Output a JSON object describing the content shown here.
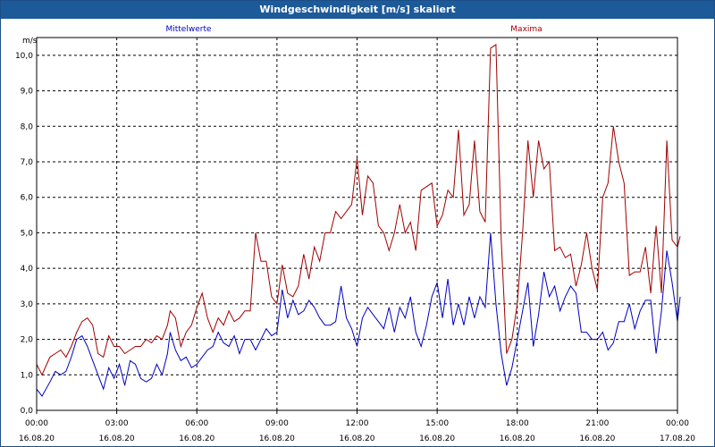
{
  "window": {
    "title": "Windgeschwindigkeit [m/s] skaliert"
  },
  "chart_data": {
    "type": "line",
    "title": "Windgeschwindigkeit [m/s] skaliert",
    "ylabel": "m/s",
    "ylim": [
      0,
      10.5
    ],
    "xlim": [
      0,
      24
    ],
    "y_ticks": [
      "0,0",
      "1,0",
      "2,0",
      "3,0",
      "4,0",
      "5,0",
      "6,0",
      "7,0",
      "8,0",
      "9,0",
      "10,0"
    ],
    "x_ticks": [
      {
        "time": "00:00",
        "date": "16.08.20"
      },
      {
        "time": "03:00",
        "date": "16.08.20"
      },
      {
        "time": "06:00",
        "date": "16.08.20"
      },
      {
        "time": "09:00",
        "date": "16.08.20"
      },
      {
        "time": "12:00",
        "date": "16.08.20"
      },
      {
        "time": "15:00",
        "date": "16.08.20"
      },
      {
        "time": "18:00",
        "date": "16.08.20"
      },
      {
        "time": "21:00",
        "date": "16.08.20"
      },
      {
        "time": "00:00",
        "date": "17.08.20"
      }
    ],
    "grid": true,
    "series": [
      {
        "name": "Mittelwerte",
        "color": "#0000c0",
        "points": [
          [
            0.0,
            0.6
          ],
          [
            0.2,
            0.4
          ],
          [
            0.5,
            0.8
          ],
          [
            0.7,
            1.1
          ],
          [
            0.9,
            1.0
          ],
          [
            1.1,
            1.1
          ],
          [
            1.3,
            1.5
          ],
          [
            1.5,
            2.0
          ],
          [
            1.7,
            2.1
          ],
          [
            1.9,
            1.8
          ],
          [
            2.1,
            1.4
          ],
          [
            2.3,
            1.0
          ],
          [
            2.5,
            0.6
          ],
          [
            2.7,
            1.2
          ],
          [
            2.9,
            0.9
          ],
          [
            3.1,
            1.3
          ],
          [
            3.3,
            0.7
          ],
          [
            3.5,
            1.4
          ],
          [
            3.7,
            1.3
          ],
          [
            3.9,
            0.9
          ],
          [
            4.1,
            0.8
          ],
          [
            4.3,
            0.9
          ],
          [
            4.5,
            1.3
          ],
          [
            4.7,
            1.0
          ],
          [
            4.9,
            1.6
          ],
          [
            5.0,
            2.2
          ],
          [
            5.2,
            1.7
          ],
          [
            5.4,
            1.4
          ],
          [
            5.6,
            1.5
          ],
          [
            5.8,
            1.2
          ],
          [
            6.0,
            1.3
          ],
          [
            6.2,
            1.5
          ],
          [
            6.4,
            1.7
          ],
          [
            6.6,
            1.8
          ],
          [
            6.8,
            2.2
          ],
          [
            7.0,
            1.9
          ],
          [
            7.2,
            1.8
          ],
          [
            7.4,
            2.1
          ],
          [
            7.6,
            1.6
          ],
          [
            7.8,
            2.0
          ],
          [
            8.0,
            2.0
          ],
          [
            8.2,
            1.7
          ],
          [
            8.4,
            2.0
          ],
          [
            8.6,
            2.3
          ],
          [
            8.8,
            2.1
          ],
          [
            9.0,
            2.2
          ],
          [
            9.2,
            3.4
          ],
          [
            9.4,
            2.6
          ],
          [
            9.6,
            3.1
          ],
          [
            9.8,
            2.7
          ],
          [
            10.0,
            2.8
          ],
          [
            10.2,
            3.1
          ],
          [
            10.4,
            2.9
          ],
          [
            10.6,
            2.6
          ],
          [
            10.8,
            2.4
          ],
          [
            11.0,
            2.4
          ],
          [
            11.2,
            2.5
          ],
          [
            11.4,
            3.5
          ],
          [
            11.6,
            2.6
          ],
          [
            11.8,
            2.3
          ],
          [
            12.0,
            1.8
          ],
          [
            12.2,
            2.6
          ],
          [
            12.4,
            2.9
          ],
          [
            12.6,
            2.7
          ],
          [
            12.8,
            2.5
          ],
          [
            13.0,
            2.3
          ],
          [
            13.2,
            2.9
          ],
          [
            13.4,
            2.2
          ],
          [
            13.6,
            2.9
          ],
          [
            13.8,
            2.6
          ],
          [
            14.0,
            3.2
          ],
          [
            14.2,
            2.2
          ],
          [
            14.4,
            1.8
          ],
          [
            14.6,
            2.4
          ],
          [
            14.8,
            3.2
          ],
          [
            15.0,
            3.6
          ],
          [
            15.2,
            2.6
          ],
          [
            15.4,
            3.7
          ],
          [
            15.6,
            2.4
          ],
          [
            15.8,
            3.0
          ],
          [
            16.0,
            2.4
          ],
          [
            16.2,
            3.2
          ],
          [
            16.4,
            2.6
          ],
          [
            16.6,
            3.2
          ],
          [
            16.8,
            2.9
          ],
          [
            17.0,
            5.0
          ],
          [
            17.2,
            3.0
          ],
          [
            17.4,
            1.6
          ],
          [
            17.6,
            0.7
          ],
          [
            17.8,
            1.2
          ],
          [
            18.0,
            2.0
          ],
          [
            18.2,
            2.8
          ],
          [
            18.4,
            3.6
          ],
          [
            18.6,
            1.8
          ],
          [
            18.8,
            2.7
          ],
          [
            19.0,
            3.9
          ],
          [
            19.2,
            3.2
          ],
          [
            19.4,
            3.5
          ],
          [
            19.6,
            2.8
          ],
          [
            19.8,
            3.2
          ],
          [
            20.0,
            3.5
          ],
          [
            20.2,
            3.3
          ],
          [
            20.4,
            2.2
          ],
          [
            20.6,
            2.2
          ],
          [
            20.8,
            2.0
          ],
          [
            21.0,
            2.0
          ],
          [
            21.2,
            2.2
          ],
          [
            21.4,
            1.7
          ],
          [
            21.6,
            1.9
          ],
          [
            21.8,
            2.5
          ],
          [
            22.0,
            2.5
          ],
          [
            22.2,
            3.0
          ],
          [
            22.4,
            2.3
          ],
          [
            22.6,
            2.8
          ],
          [
            22.8,
            3.1
          ],
          [
            23.0,
            3.1
          ],
          [
            23.2,
            1.6
          ],
          [
            23.4,
            2.8
          ],
          [
            23.6,
            4.5
          ],
          [
            23.8,
            3.6
          ],
          [
            24.0,
            2.5
          ],
          [
            24.1,
            3.2
          ]
        ]
      },
      {
        "name": "Maxima",
        "color": "#a00000",
        "points": [
          [
            0.0,
            1.3
          ],
          [
            0.2,
            1.0
          ],
          [
            0.5,
            1.5
          ],
          [
            0.7,
            1.6
          ],
          [
            0.9,
            1.7
          ],
          [
            1.1,
            1.5
          ],
          [
            1.3,
            1.8
          ],
          [
            1.5,
            2.2
          ],
          [
            1.7,
            2.5
          ],
          [
            1.9,
            2.6
          ],
          [
            2.1,
            2.4
          ],
          [
            2.3,
            1.6
          ],
          [
            2.5,
            1.5
          ],
          [
            2.7,
            2.1
          ],
          [
            2.9,
            1.8
          ],
          [
            3.1,
            1.8
          ],
          [
            3.3,
            1.6
          ],
          [
            3.5,
            1.7
          ],
          [
            3.7,
            1.8
          ],
          [
            3.9,
            1.8
          ],
          [
            4.1,
            2.0
          ],
          [
            4.3,
            1.9
          ],
          [
            4.5,
            2.1
          ],
          [
            4.7,
            2.0
          ],
          [
            4.9,
            2.4
          ],
          [
            5.0,
            2.8
          ],
          [
            5.2,
            2.6
          ],
          [
            5.4,
            1.8
          ],
          [
            5.6,
            2.2
          ],
          [
            5.8,
            2.4
          ],
          [
            6.0,
            2.9
          ],
          [
            6.2,
            3.3
          ],
          [
            6.4,
            2.6
          ],
          [
            6.6,
            2.2
          ],
          [
            6.8,
            2.6
          ],
          [
            7.0,
            2.4
          ],
          [
            7.2,
            2.8
          ],
          [
            7.4,
            2.5
          ],
          [
            7.6,
            2.6
          ],
          [
            7.8,
            2.8
          ],
          [
            8.0,
            2.8
          ],
          [
            8.2,
            5.0
          ],
          [
            8.4,
            4.2
          ],
          [
            8.6,
            4.2
          ],
          [
            8.8,
            3.2
          ],
          [
            9.0,
            3.0
          ],
          [
            9.2,
            4.1
          ],
          [
            9.4,
            3.3
          ],
          [
            9.6,
            3.2
          ],
          [
            9.8,
            3.5
          ],
          [
            10.0,
            4.4
          ],
          [
            10.2,
            3.7
          ],
          [
            10.4,
            4.6
          ],
          [
            10.6,
            4.2
          ],
          [
            10.8,
            5.0
          ],
          [
            11.0,
            5.0
          ],
          [
            11.2,
            5.6
          ],
          [
            11.4,
            5.4
          ],
          [
            11.6,
            5.6
          ],
          [
            11.8,
            5.8
          ],
          [
            12.0,
            7.1
          ],
          [
            12.2,
            5.5
          ],
          [
            12.4,
            6.6
          ],
          [
            12.6,
            6.4
          ],
          [
            12.8,
            5.2
          ],
          [
            13.0,
            5.0
          ],
          [
            13.2,
            4.5
          ],
          [
            13.4,
            5.0
          ],
          [
            13.6,
            5.8
          ],
          [
            13.8,
            5.0
          ],
          [
            14.0,
            5.3
          ],
          [
            14.2,
            4.5
          ],
          [
            14.4,
            6.2
          ],
          [
            14.6,
            6.3
          ],
          [
            14.8,
            6.4
          ],
          [
            15.0,
            5.2
          ],
          [
            15.2,
            5.5
          ],
          [
            15.4,
            6.2
          ],
          [
            15.6,
            6.0
          ],
          [
            15.8,
            7.9
          ],
          [
            16.0,
            5.5
          ],
          [
            16.2,
            5.8
          ],
          [
            16.4,
            7.6
          ],
          [
            16.6,
            5.6
          ],
          [
            16.8,
            5.3
          ],
          [
            17.0,
            10.2
          ],
          [
            17.2,
            10.3
          ],
          [
            17.4,
            4.8
          ],
          [
            17.6,
            1.6
          ],
          [
            17.8,
            2.0
          ],
          [
            18.0,
            3.0
          ],
          [
            18.2,
            5.0
          ],
          [
            18.4,
            7.6
          ],
          [
            18.6,
            6.0
          ],
          [
            18.8,
            7.6
          ],
          [
            19.0,
            6.8
          ],
          [
            19.2,
            7.0
          ],
          [
            19.4,
            4.5
          ],
          [
            19.6,
            4.6
          ],
          [
            19.8,
            4.3
          ],
          [
            20.0,
            4.4
          ],
          [
            20.2,
            3.5
          ],
          [
            20.4,
            4.1
          ],
          [
            20.6,
            5.0
          ],
          [
            20.8,
            4.0
          ],
          [
            21.0,
            3.4
          ],
          [
            21.2,
            6.0
          ],
          [
            21.4,
            6.4
          ],
          [
            21.6,
            8.0
          ],
          [
            21.8,
            7.0
          ],
          [
            22.0,
            6.4
          ],
          [
            22.2,
            3.8
          ],
          [
            22.4,
            3.9
          ],
          [
            22.6,
            3.9
          ],
          [
            22.8,
            4.6
          ],
          [
            23.0,
            3.3
          ],
          [
            23.2,
            5.2
          ],
          [
            23.4,
            3.3
          ],
          [
            23.6,
            7.6
          ],
          [
            23.8,
            4.8
          ],
          [
            24.0,
            4.6
          ],
          [
            24.1,
            4.9
          ]
        ]
      }
    ]
  }
}
